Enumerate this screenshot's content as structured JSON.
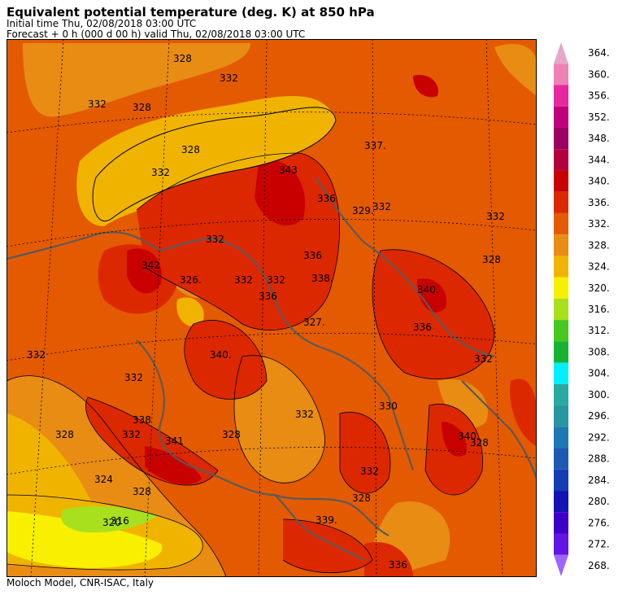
{
  "header": {
    "title": "Equivalent potential temperature (deg. K) at 850 hPa",
    "initial_time": "Initial time  Thu, 02/08/2018  03:00 UTC",
    "forecast": "Forecast  +   0 h  (000 d 00 h)  valid Thu, 02/08/2018 03:00 UTC"
  },
  "footer": {
    "credit": "Moloch Model, CNR-ISAC, Italy"
  },
  "map": {
    "contour_labels": [
      "328",
      "332",
      "328",
      "332",
      "337.",
      "343",
      "336",
      "329.",
      "332",
      "332",
      "328",
      "342",
      "326.",
      "332",
      "336",
      "332",
      "336",
      "332",
      "338.",
      "340.",
      "327.",
      "336",
      "332",
      "340.",
      "332",
      "332",
      "328",
      "338",
      "332",
      "341",
      "328",
      "330",
      "332",
      "340.",
      "328",
      "324",
      "328",
      "320",
      "316",
      "332",
      "328",
      "339.",
      "336",
      "328",
      "332"
    ]
  },
  "colorbar": {
    "levels": [
      "364.",
      "360.",
      "356.",
      "352.",
      "348.",
      "344.",
      "340.",
      "336.",
      "332.",
      "328.",
      "324.",
      "320.",
      "316.",
      "312.",
      "308.",
      "304.",
      "300.",
      "296.",
      "292.",
      "288.",
      "284.",
      "280.",
      "276.",
      "272.",
      "268."
    ],
    "colors": [
      "#e6a8c8",
      "#ee82b4",
      "#e8289e",
      "#c0007a",
      "#9e0060",
      "#b4003c",
      "#c80000",
      "#dc2800",
      "#e45a00",
      "#e88c14",
      "#f0b400",
      "#f8f000",
      "#a8e01e",
      "#46c81e",
      "#14b432",
      "#00f0ff",
      "#28aaa0",
      "#2896a0",
      "#1e78b4",
      "#1e5ab4",
      "#143cb4",
      "#1414b4",
      "#3c00c8",
      "#6414e6",
      "#a064ff"
    ]
  }
}
